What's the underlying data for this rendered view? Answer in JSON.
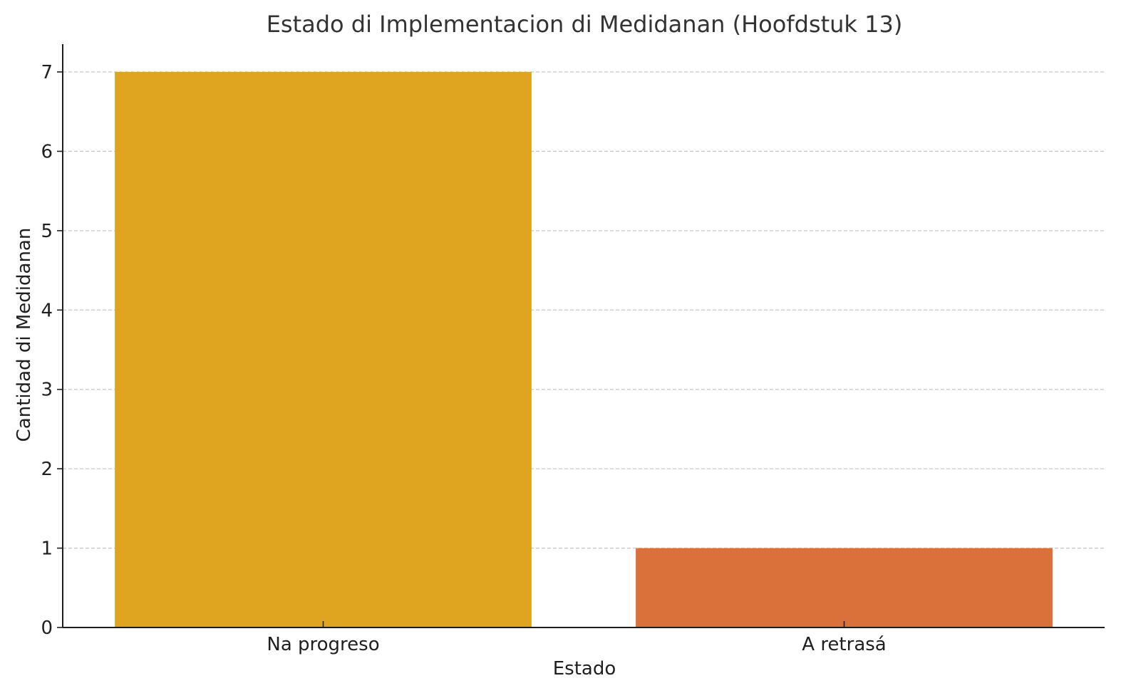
{
  "chart_data": {
    "type": "bar",
    "title": "Estado di Implementacion di Medidanan (Hoofdstuk 13)",
    "xlabel": "Estado",
    "ylabel": "Cantidad di Medidanan",
    "categories": [
      "Na progreso",
      "A retrasá"
    ],
    "values": [
      7,
      1
    ],
    "colors": [
      "#DFA521",
      "#DA703A"
    ],
    "ylim": [
      0,
      7.35
    ],
    "yticks": [
      0,
      1,
      2,
      3,
      4,
      5,
      6,
      7
    ],
    "grid": {
      "y": true,
      "x": false,
      "style": "dashed",
      "color": "#c8c8c8"
    },
    "axis_color": "#1f1f1f",
    "legend": "none"
  }
}
